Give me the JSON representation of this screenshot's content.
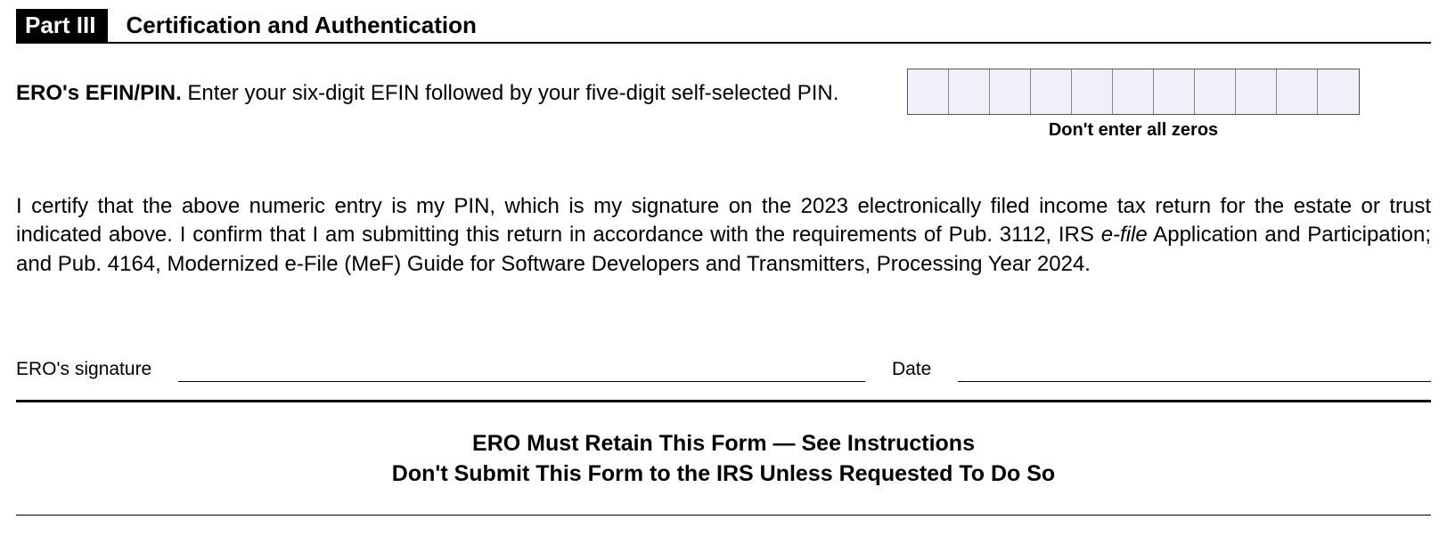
{
  "header": {
    "part_label": "Part III",
    "title": "Certification and Authentication"
  },
  "efin": {
    "bold_label": "ERO's EFIN/PIN.",
    "instruction": " Enter your six-digit EFIN followed by your five-digit self-selected PIN.",
    "box_count": 11,
    "box_bg_color": "#f0f0f8",
    "caption": "Don't enter all zeros"
  },
  "certification": {
    "text_part1": "I certify that the above numeric entry is my PIN, which is my signature on the 2023 electronically filed income tax return for the estate or trust indicated above. I confirm that I am submitting this return in accordance with the requirements of Pub. 3112, IRS ",
    "italic_part": "e-file",
    "text_part2": " Application and Participation; and Pub. 4164, Modernized e-File (MeF) Guide for Software Developers and Transmitters, Processing Year 2024."
  },
  "signature": {
    "sig_label": "ERO's signature",
    "date_label": "Date"
  },
  "retain": {
    "line1": "ERO Must Retain This Form — See Instructions",
    "line2": "Don't Submit This Form to the IRS Unless Requested To Do So"
  }
}
